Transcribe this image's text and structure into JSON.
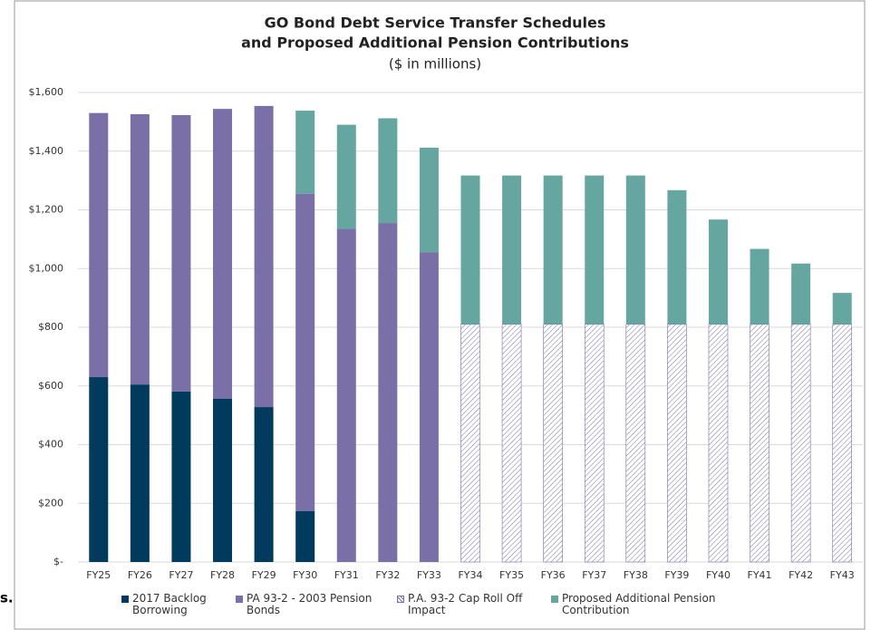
{
  "chart_data": {
    "type": "stacked_bar",
    "title": "GO Bond Debt Service Transfer Schedules",
    "title_line2": "and Proposed Additional Pension Contributions",
    "subtitle": "($ in millions)",
    "side_text": "s.",
    "categories": [
      "FY25",
      "FY26",
      "FY27",
      "FY28",
      "FY29",
      "FY30",
      "FY31",
      "FY32",
      "FY33",
      "FY34",
      "FY35",
      "FY36",
      "FY37",
      "FY38",
      "FY39",
      "FY40",
      "FY41",
      "FY42",
      "FY43"
    ],
    "series": [
      {
        "name": "2017 Backlog Borrowing",
        "color": "#003a5c",
        "hatch": false,
        "values": [
          630,
          605,
          581,
          556,
          528,
          173,
          null,
          null,
          null,
          null,
          null,
          null,
          null,
          null,
          null,
          null,
          null,
          null,
          null
        ]
      },
      {
        "name": "PA 93-2 - 2003 Pension Bonds",
        "color": "#7b6fa8",
        "hatch": false,
        "values": [
          900,
          921,
          942,
          988,
          1026,
          1082,
          1135,
          1155,
          1055,
          null,
          null,
          null,
          null,
          null,
          null,
          null,
          null,
          null,
          null
        ]
      },
      {
        "name": "P.A. 93-2 Cap Roll Off Impact",
        "color": "#7b6fa8",
        "hatch": true,
        "values": [
          null,
          null,
          null,
          null,
          null,
          null,
          null,
          null,
          null,
          810,
          810,
          810,
          810,
          810,
          810,
          810,
          810,
          810,
          810
        ]
      },
      {
        "name": "Proposed Additional Pension Contribution",
        "color": "#66a6a0",
        "hatch": false,
        "values": [
          null,
          null,
          null,
          null,
          null,
          283,
          355,
          357,
          357,
          507,
          507,
          507,
          507,
          507,
          457,
          357,
          257,
          207,
          107
        ]
      }
    ],
    "ylim": [
      0,
      1600
    ],
    "yticks": [
      {
        "value": 0,
        "label": "$-"
      },
      {
        "value": 200,
        "label": "$200"
      },
      {
        "value": 400,
        "label": "$400"
      },
      {
        "value": 600,
        "label": "$600"
      },
      {
        "value": 800,
        "label": "$800"
      },
      {
        "value": 1000,
        "label": "$1,000"
      },
      {
        "value": 1200,
        "label": "$1,200"
      },
      {
        "value": 1400,
        "label": "$1,400"
      },
      {
        "value": 1600,
        "label": "$1,600"
      }
    ],
    "grid": true,
    "legend": "bottom"
  }
}
